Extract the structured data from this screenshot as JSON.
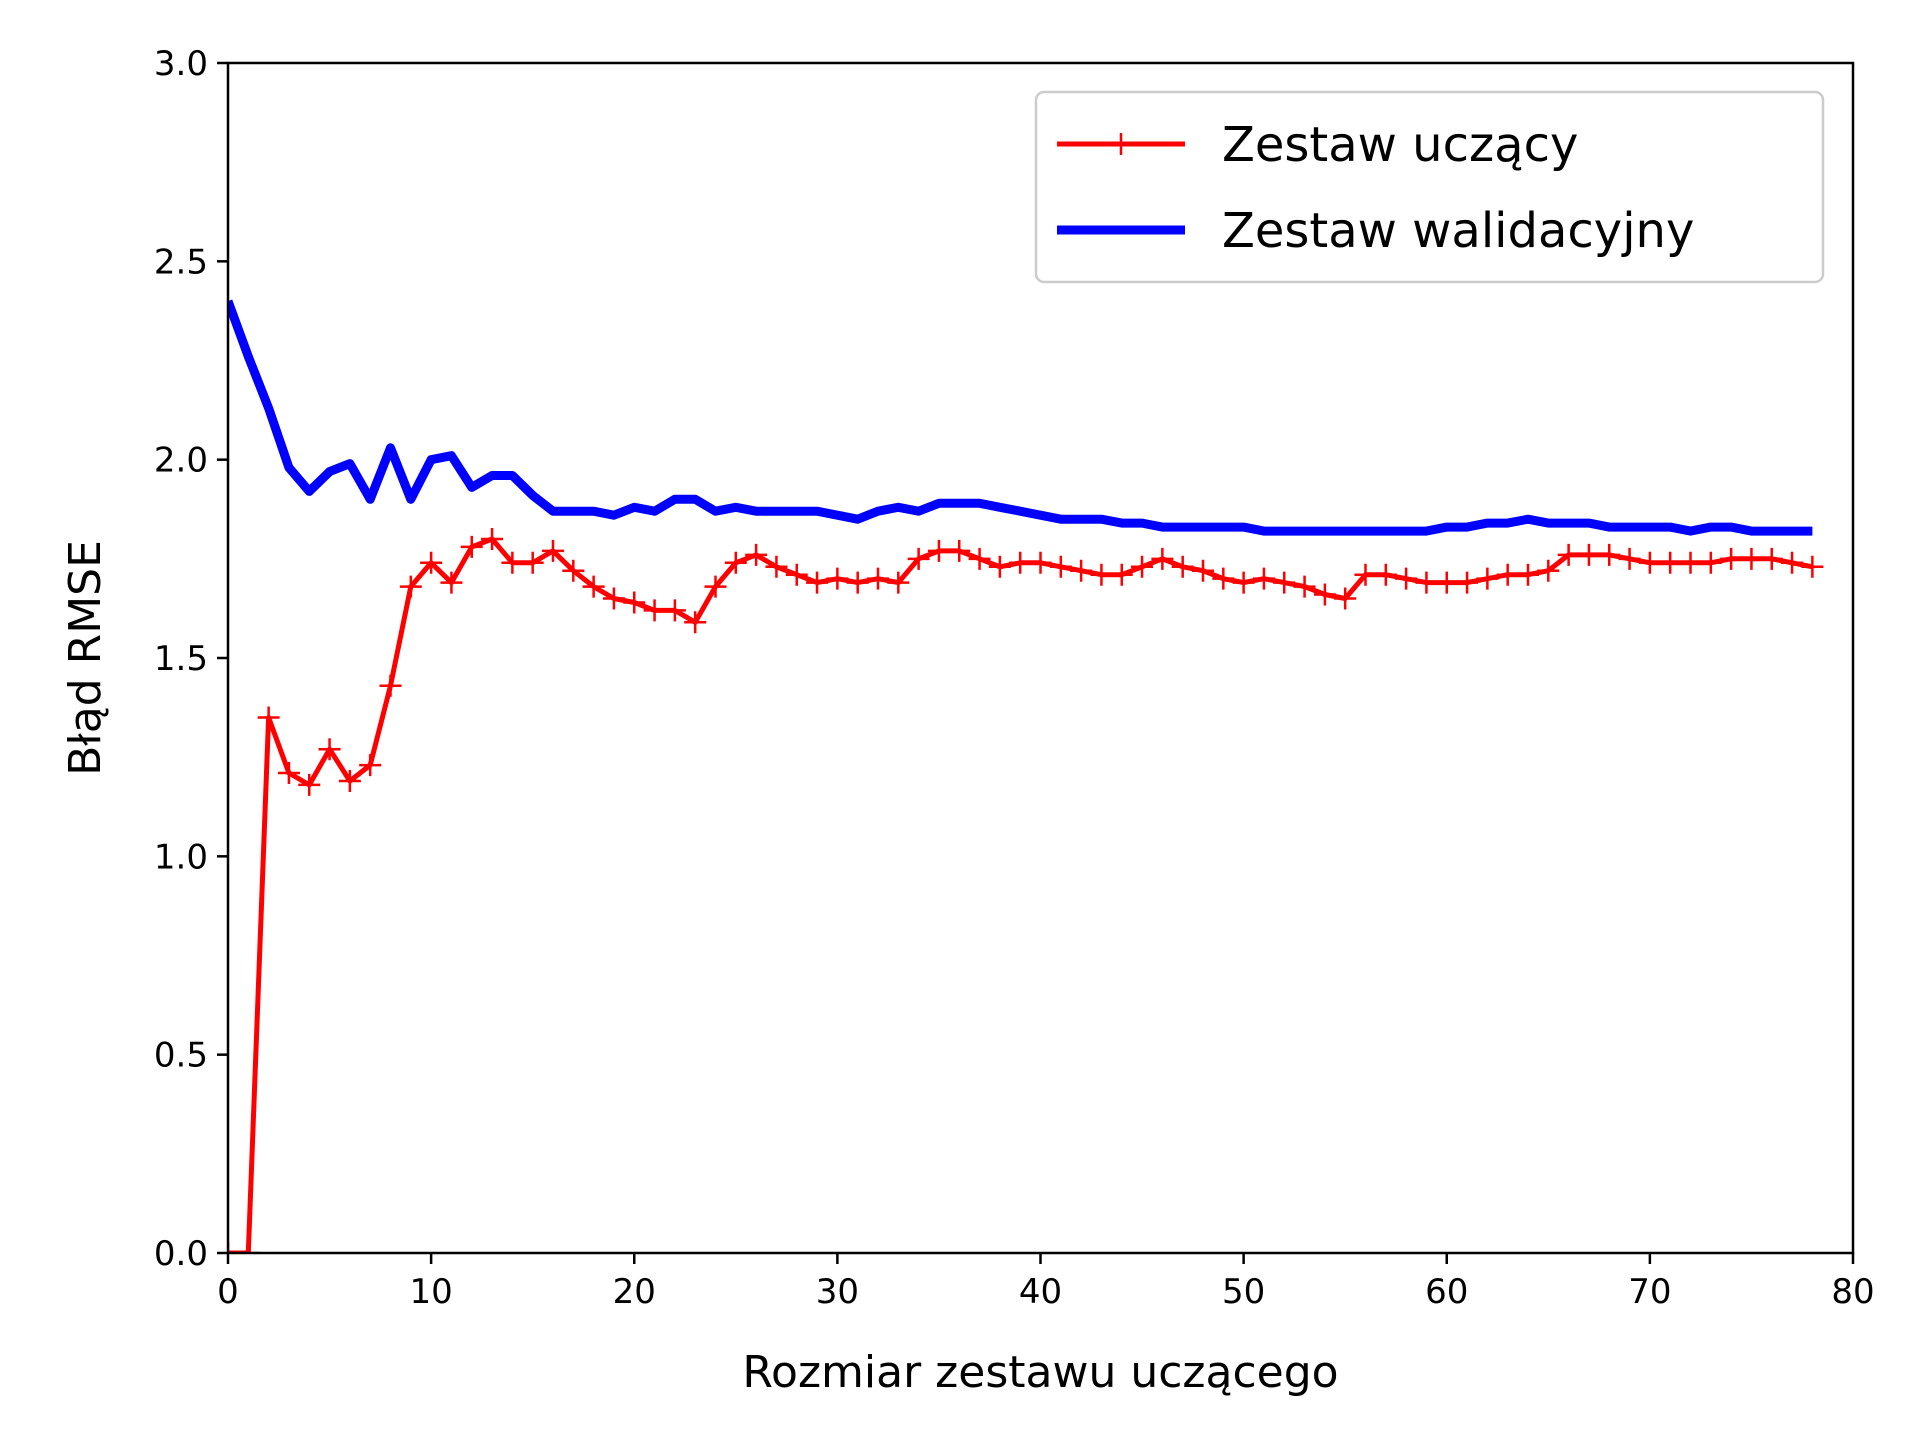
{
  "chart_data": {
    "type": "line",
    "xlabel": "Rozmiar zestawu uczącego",
    "ylabel": "Błąd RMSE",
    "xlim": [
      0,
      80
    ],
    "ylim": [
      0,
      3.0
    ],
    "xticks": [
      "0",
      "10",
      "20",
      "30",
      "40",
      "50",
      "60",
      "70",
      "80"
    ],
    "yticks": [
      "0.0",
      "0.5",
      "1.0",
      "1.5",
      "2.0",
      "2.5",
      "3.0"
    ],
    "grid": false,
    "legend_position": "top-right",
    "series": [
      {
        "name": "Zestaw uczący",
        "color": "#ff0000",
        "marker": "plus",
        "x": [
          0,
          1,
          2,
          3,
          4,
          5,
          6,
          7,
          8,
          9,
          10,
          11,
          12,
          13,
          14,
          15,
          16,
          17,
          18,
          19,
          20,
          21,
          22,
          23,
          24,
          25,
          26,
          27,
          28,
          29,
          30,
          31,
          32,
          33,
          34,
          35,
          36,
          37,
          38,
          39,
          40,
          41,
          42,
          43,
          44,
          45,
          46,
          47,
          48,
          49,
          50,
          51,
          52,
          53,
          54,
          55,
          56,
          57,
          58,
          59,
          60,
          61,
          62,
          63,
          64,
          65,
          66,
          67,
          68,
          69,
          70,
          71,
          72,
          73,
          74,
          75,
          76,
          77,
          78
        ],
        "values": [
          0.0,
          0.0,
          1.35,
          1.21,
          1.18,
          1.27,
          1.19,
          1.23,
          1.43,
          1.68,
          1.74,
          1.69,
          1.78,
          1.8,
          1.74,
          1.74,
          1.77,
          1.72,
          1.68,
          1.65,
          1.64,
          1.62,
          1.62,
          1.59,
          1.68,
          1.74,
          1.76,
          1.73,
          1.71,
          1.69,
          1.7,
          1.69,
          1.7,
          1.69,
          1.75,
          1.77,
          1.77,
          1.75,
          1.73,
          1.74,
          1.74,
          1.73,
          1.72,
          1.71,
          1.71,
          1.73,
          1.75,
          1.73,
          1.72,
          1.7,
          1.69,
          1.7,
          1.69,
          1.68,
          1.66,
          1.65,
          1.71,
          1.71,
          1.7,
          1.69,
          1.69,
          1.69,
          1.7,
          1.71,
          1.71,
          1.72,
          1.76,
          1.76,
          1.76,
          1.75,
          1.74,
          1.74,
          1.74,
          1.74,
          1.75,
          1.75,
          1.75,
          1.74,
          1.73
        ]
      },
      {
        "name": "Zestaw walidacyjny",
        "color": "#0000ff",
        "marker": "none",
        "x": [
          0,
          1,
          2,
          3,
          4,
          5,
          6,
          7,
          8,
          9,
          10,
          11,
          12,
          13,
          14,
          15,
          16,
          17,
          18,
          19,
          20,
          21,
          22,
          23,
          24,
          25,
          26,
          27,
          28,
          29,
          30,
          31,
          32,
          33,
          34,
          35,
          36,
          37,
          38,
          39,
          40,
          41,
          42,
          43,
          44,
          45,
          46,
          47,
          48,
          49,
          50,
          51,
          52,
          53,
          54,
          55,
          56,
          57,
          58,
          59,
          60,
          61,
          62,
          63,
          64,
          65,
          66,
          67,
          68,
          69,
          70,
          71,
          72,
          73,
          74,
          75,
          76,
          77,
          78
        ],
        "values": [
          2.4,
          2.26,
          2.13,
          1.98,
          1.92,
          1.97,
          1.99,
          1.9,
          2.03,
          1.9,
          2.0,
          2.01,
          1.93,
          1.96,
          1.96,
          1.91,
          1.87,
          1.87,
          1.87,
          1.86,
          1.88,
          1.87,
          1.9,
          1.9,
          1.87,
          1.88,
          1.87,
          1.87,
          1.87,
          1.87,
          1.86,
          1.85,
          1.87,
          1.88,
          1.87,
          1.89,
          1.89,
          1.89,
          1.88,
          1.87,
          1.86,
          1.85,
          1.85,
          1.85,
          1.84,
          1.84,
          1.83,
          1.83,
          1.83,
          1.83,
          1.83,
          1.82,
          1.82,
          1.82,
          1.82,
          1.82,
          1.82,
          1.82,
          1.82,
          1.82,
          1.83,
          1.83,
          1.84,
          1.84,
          1.85,
          1.84,
          1.84,
          1.84,
          1.83,
          1.83,
          1.83,
          1.83,
          1.82,
          1.83,
          1.83,
          1.82,
          1.82,
          1.82,
          1.82
        ]
      }
    ]
  }
}
